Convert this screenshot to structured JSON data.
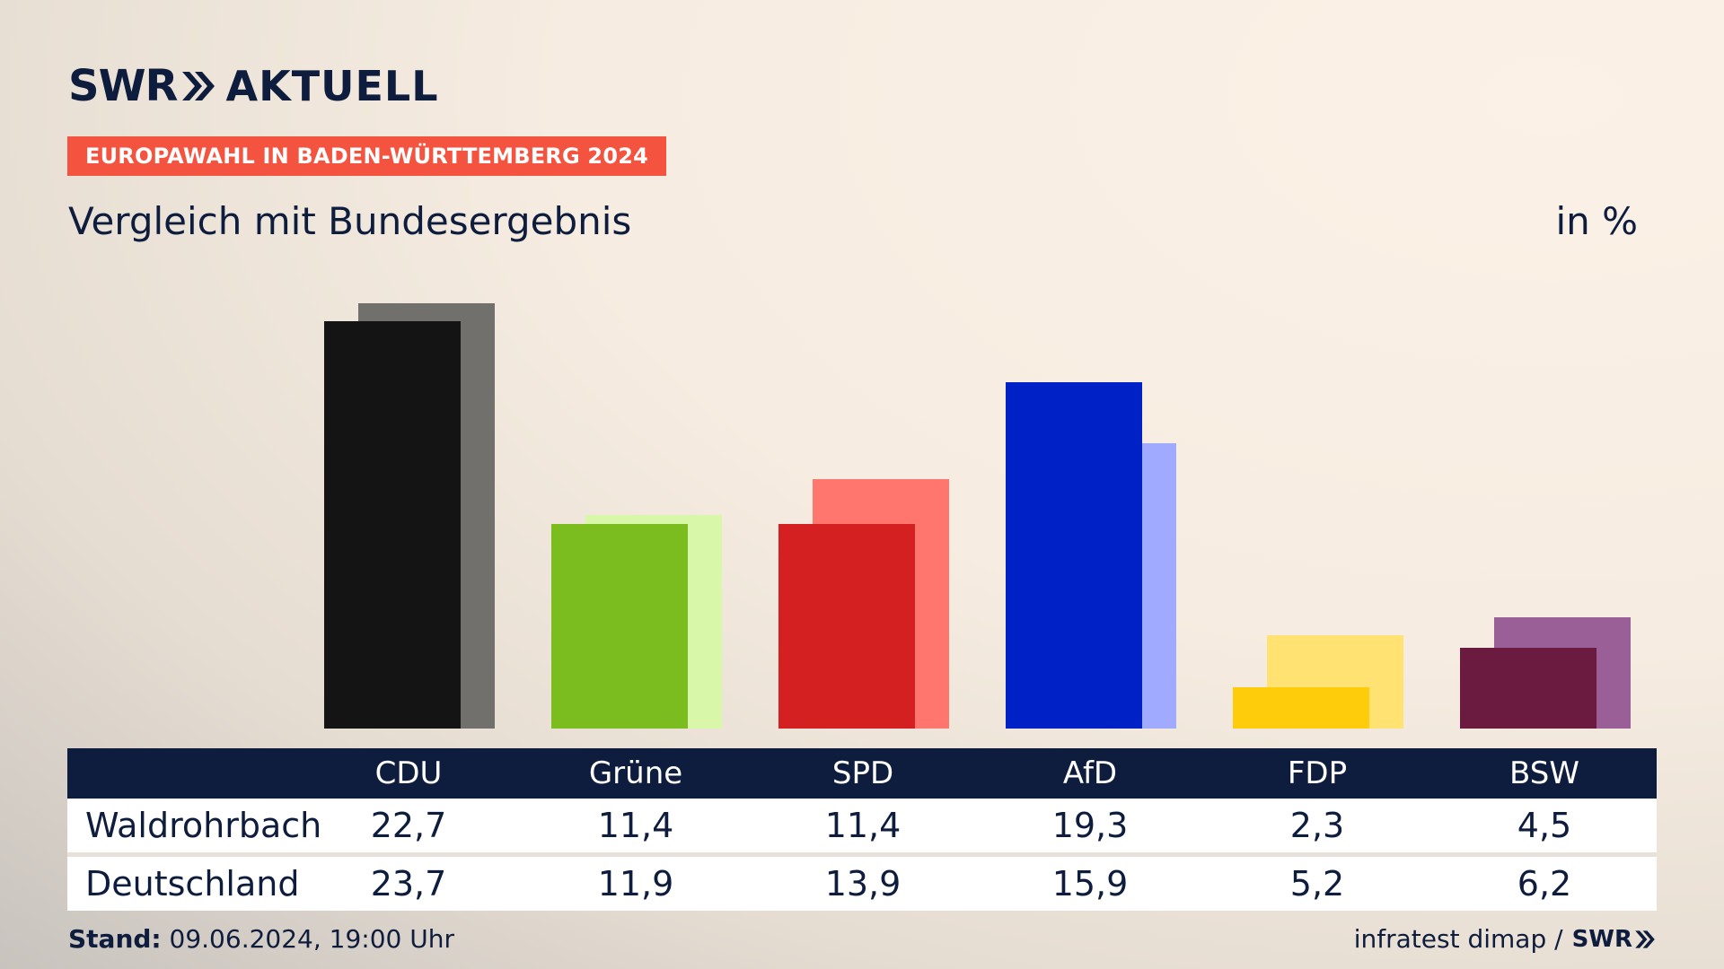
{
  "brand": {
    "logo_text": "SWR AKTUELL",
    "logo_word1": "SWR",
    "logo_word2": "AKTUELL",
    "navy": "#0e1d3d"
  },
  "tag": {
    "text": "EUROPAWAHL IN BADEN-WÜRTTEMBERG 2024",
    "color": "#f4533f"
  },
  "subtitle": "Vergleich mit Bundesergebnis",
  "unit": "in %",
  "chart_data": {
    "type": "bar",
    "categories": [
      "CDU",
      "Grüne",
      "SPD",
      "AfD",
      "FDP",
      "BSW"
    ],
    "series": [
      {
        "name": "Waldrohrbach",
        "values": [
          22.7,
          11.4,
          11.4,
          19.3,
          2.3,
          4.5
        ]
      },
      {
        "name": "Deutschland",
        "values": [
          23.7,
          11.9,
          13.9,
          15.9,
          5.2,
          6.2
        ]
      }
    ],
    "colors_front": [
      "#141414",
      "#7bbd1e",
      "#d42020",
      "#0021c6",
      "#ffcc0b",
      "#6b1a40"
    ],
    "colors_back": [
      "#72706d",
      "#d9f7a9",
      "#ff766e",
      "#a0aaff",
      "#ffe272",
      "#9a5f96"
    ],
    "title": "Vergleich mit Bundesergebnis",
    "ylabel": "in %",
    "grid": false
  },
  "table": {
    "row_labels": [
      "Waldrohrbach",
      "Deutschland"
    ],
    "row1": [
      "22,7",
      "11,4",
      "11,4",
      "19,3",
      "2,3",
      "4,5"
    ],
    "row2": [
      "23,7",
      "11,9",
      "13,9",
      "15,9",
      "5,2",
      "6,2"
    ]
  },
  "footer": {
    "stand_label": "Stand:",
    "stand_value": "09.06.2024, 19:00 Uhr",
    "source": "infratest dimap /",
    "source_logo": "SWR"
  }
}
